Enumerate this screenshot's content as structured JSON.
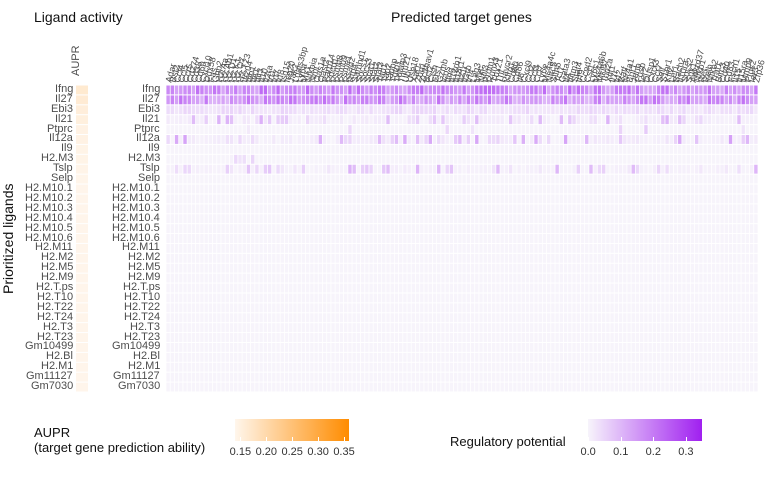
{
  "chart_data": {
    "type": "heatmap",
    "left_panel_title": "Ligand activity",
    "right_panel_title": "Predicted target genes",
    "left_x_label": "AUPR",
    "y_axis_label": "Prioritized ligands",
    "ligands": [
      "Ifng",
      "Il27",
      "Ebi3",
      "Il21",
      "Ptprc",
      "Il12a",
      "Il9",
      "H2.M3",
      "Tslp",
      "Selp",
      "H2.M10.1",
      "H2.M10.2",
      "H2.M10.3",
      "H2.M10.4",
      "H2.M10.5",
      "H2.M10.6",
      "H2.M11",
      "H2.M2",
      "H2.M5",
      "H2.M9",
      "H2.T.ps",
      "H2.T10",
      "H2.T22",
      "H2.T24",
      "H2.T3",
      "H2.T23",
      "Gm10499",
      "H2.Bl",
      "H2.M1",
      "Gm11127",
      "Gm7030"
    ],
    "target_genes": [
      "Adar",
      "Bst2",
      "Ccl4",
      "Ccl5",
      "Ccr5",
      "Cd274",
      "Cd38",
      "Cd69",
      "Cxcl10",
      "Ddx58",
      "Fas",
      "Gbp2",
      "H2.Aa",
      "H2.Ab1",
      "H2.D1",
      "H2.K1",
      "H2.Q7",
      "H2.T23",
      "Ifi204",
      "Ifih1",
      "Ifit1",
      "Ifit3",
      "Il10",
      "Il2ra",
      "Irf1",
      "Irf7",
      "Irf8",
      "Isg15",
      "Isg20",
      "Jak2",
      "Lgals3bp",
      "Ly6a",
      "Mx1",
      "Nfkbia",
      "Nmi",
      "Oas1a",
      "Oasl2",
      "Parp14",
      "Pdcd1",
      "Psmb8",
      "Psmb9",
      "Psme1",
      "Rsad2",
      "Rtp4",
      "Samhd1",
      "Socs1",
      "Socs3",
      "Stat1",
      "Stat2",
      "Stat3",
      "Tap1",
      "Tap2",
      "Tapbp",
      "Tgtp1",
      "Tnfaip3",
      "Trim21",
      "Ubc",
      "Usp18",
      "Xaf1",
      "Zbp1",
      "Zc3hav1",
      "Bcl2",
      "Cish",
      "Ets1",
      "Gzmb",
      "Icos",
      "Ifng",
      "Il12rb1",
      "Il18r1",
      "Il21r",
      "Il2rb",
      "Irf4",
      "Lag3",
      "Myc",
      "Nfil3",
      "Prdm1",
      "Runx3",
      "Tbx21",
      "Tnf",
      "Havcr2",
      "Klrg1",
      "Cd80",
      "Cd86",
      "Il6",
      "Cxcl9",
      "Ccl2",
      "Ccl3",
      "Ccl7",
      "Ly6e",
      "Ms4a4c",
      "Nlrc5",
      "Slfn5",
      "Tcf7",
      "Gata3",
      "Il4",
      "Ifitm3",
      "Stat4",
      "Irf9",
      "Ccnd2",
      "Csf1",
      "Ly6c1",
      "Ms4a6b",
      "Mki67",
      "Top2a",
      "Xcl1",
      "Il7r",
      "Id2",
      "Batf",
      "Nr4a1",
      "Egr1",
      "Junb",
      "Fosb",
      "Ier2",
      "Dusp1",
      "Cxcr3",
      "Ccr7",
      "Sell",
      "S1pr1",
      "Klf2",
      "Lef1",
      "Bach2",
      "Il10ra",
      "Socs2",
      "Sgk1",
      "Ankrd37",
      "Nfkb1",
      "Rel",
      "Relb",
      "Nfkb2",
      "Traf1",
      "Birc3",
      "Cd40",
      "Cd83",
      "Fscn1",
      "Il15",
      "Il15ra",
      "Mmp9",
      "Ptgs2",
      "Ier3",
      "Zfp36"
    ],
    "aupr": [
      0.355,
      0.33,
      0.27,
      0.245,
      0.205,
      0.205,
      0.18,
      0.175,
      0.17,
      0.155,
      0.15,
      0.15,
      0.15,
      0.15,
      0.15,
      0.15,
      0.15,
      0.15,
      0.15,
      0.15,
      0.15,
      0.15,
      0.15,
      0.15,
      0.15,
      0.15,
      0.15,
      0.15,
      0.15,
      0.15,
      0.15
    ],
    "regulatory_potential": {
      "range": [
        0,
        0.35
      ],
      "active_rows": {
        "Ifng": {
          "base": 0.16,
          "variation": 0.11
        },
        "Il27": {
          "base": 0.14,
          "variation": 0.12
        },
        "Ebi3": {
          "base": 0.03,
          "variation": 0.04
        },
        "Il21": {
          "base": 0.02,
          "variation": 0.09,
          "sparse": true
        },
        "Ptprc": {
          "base": 0.0,
          "variation": 0.08,
          "sparse": true,
          "density": 0.03
        },
        "Il12a": {
          "base": 0.02,
          "variation": 0.12,
          "sparse": true
        },
        "H2.M3": {
          "base": 0.0,
          "variation": 0.08,
          "segment": [
            12,
            20
          ]
        },
        "Tslp": {
          "base": 0.01,
          "variation": 0.1,
          "sparse": true
        }
      },
      "default": 0.0
    },
    "legend_aupr": {
      "title_line1": "AUPR",
      "title_line2": "(target gene prediction ability)",
      "ticks": [
        "0.15",
        "0.20",
        "0.25",
        "0.30",
        "0.35"
      ],
      "tick_values": [
        0.15,
        0.2,
        0.25,
        0.3,
        0.35
      ],
      "range": [
        0.14,
        0.36
      ],
      "color_low": "#fff6ec",
      "color_high": "#ff8c00"
    },
    "legend_reg": {
      "title": "Regulatory potential",
      "ticks": [
        "0.0",
        "0.1",
        "0.2",
        "0.3"
      ],
      "tick_values": [
        0,
        0.1,
        0.2,
        0.3
      ],
      "range": [
        0,
        0.35
      ],
      "color_low": "#f7f4fb",
      "color_high": "#a020f0"
    }
  }
}
